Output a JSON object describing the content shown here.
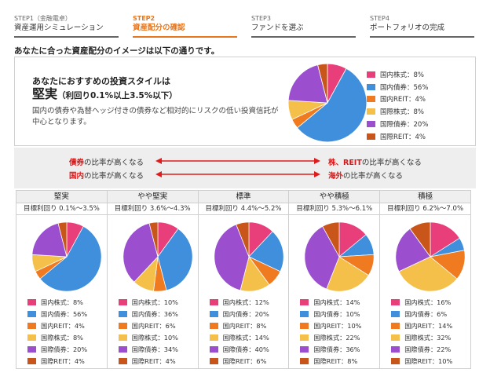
{
  "steps": [
    {
      "num": "STEP1（金融電卓）",
      "name": "資産運用シミュレーション",
      "active": false
    },
    {
      "num": "STEP2",
      "name": "資産配分の確認",
      "active": true
    },
    {
      "num": "STEP3",
      "name": "ファンドを選ぶ",
      "active": false
    },
    {
      "num": "STEP4",
      "name": "ポートフォリオの完成",
      "active": false
    }
  ],
  "intro": "あなたに合った資産配分のイメージは以下の通りです。",
  "colors": [
    "#e83e7a",
    "#3f8fdc",
    "#f07a20",
    "#f5c04a",
    "#9b4fcf",
    "#c8551a"
  ],
  "recommendation": {
    "subtitle": "あなたにおすすめの投資スタイルは",
    "style": "堅実",
    "range": "（利回り0.1%以上3.5%以下）",
    "description": "国内の債券や為替ヘッジ付きの債券など相対的にリスクの低い投資信託が中心となります。",
    "legend": [
      "国内株式：8%",
      "国内債券：56%",
      "国内REIT：4%",
      "国際株式：8%",
      "国際債券：20%",
      "国際REIT：4%"
    ],
    "values": [
      8,
      56,
      4,
      8,
      20,
      4
    ]
  },
  "arrows": {
    "row1_left_red": "債券",
    "row1_left_rest": "の比率が高くなる",
    "row1_right_red": "株、REIT",
    "row1_right_rest": "の比率が高くなる",
    "row2_left_red": "国内",
    "row2_left_rest": "の比率が高くなる",
    "row2_right_red": "海外",
    "row2_right_rest": "の比率が高くなる"
  },
  "styles": [
    {
      "title": "堅実",
      "yield": "目標利回り 0.1%〜3.5%",
      "legend": [
        "国内株式：8%",
        "国内債券：56%",
        "国内REIT：4%",
        "国際株式：8%",
        "国際債券：20%",
        "国際REIT：4%"
      ],
      "values": [
        8,
        56,
        4,
        8,
        20,
        4
      ]
    },
    {
      "title": "やや堅実",
      "yield": "目標利回り 3.6%〜4.3%",
      "legend": [
        "国内株式：10%",
        "国内債券：36%",
        "国内REIT：6%",
        "国際株式：10%",
        "国際債券：34%",
        "国際REIT：4%"
      ],
      "values": [
        10,
        36,
        6,
        10,
        34,
        4
      ]
    },
    {
      "title": "標準",
      "yield": "目標利回り 4.4%〜5.2%",
      "legend": [
        "国内株式：12%",
        "国内債券：20%",
        "国内REIT：8%",
        "国際株式：14%",
        "国際債券：40%",
        "国際REIT：6%"
      ],
      "values": [
        12,
        20,
        8,
        14,
        40,
        6
      ]
    },
    {
      "title": "やや積極",
      "yield": "目標利回り 5.3%〜6.1%",
      "legend": [
        "国内株式：14%",
        "国内債券：10%",
        "国内REIT：10%",
        "国際株式：22%",
        "国際債券：36%",
        "国際REIT：8%"
      ],
      "values": [
        14,
        10,
        10,
        22,
        36,
        8
      ]
    },
    {
      "title": "積極",
      "yield": "目標利回り 6.2%〜7.0%",
      "legend": [
        "国内株式：16%",
        "国内債券：6%",
        "国内REIT：14%",
        "国際株式：32%",
        "国際債券：22%",
        "国際REIT：10%"
      ],
      "values": [
        16,
        6,
        14,
        32,
        22,
        10
      ]
    }
  ]
}
